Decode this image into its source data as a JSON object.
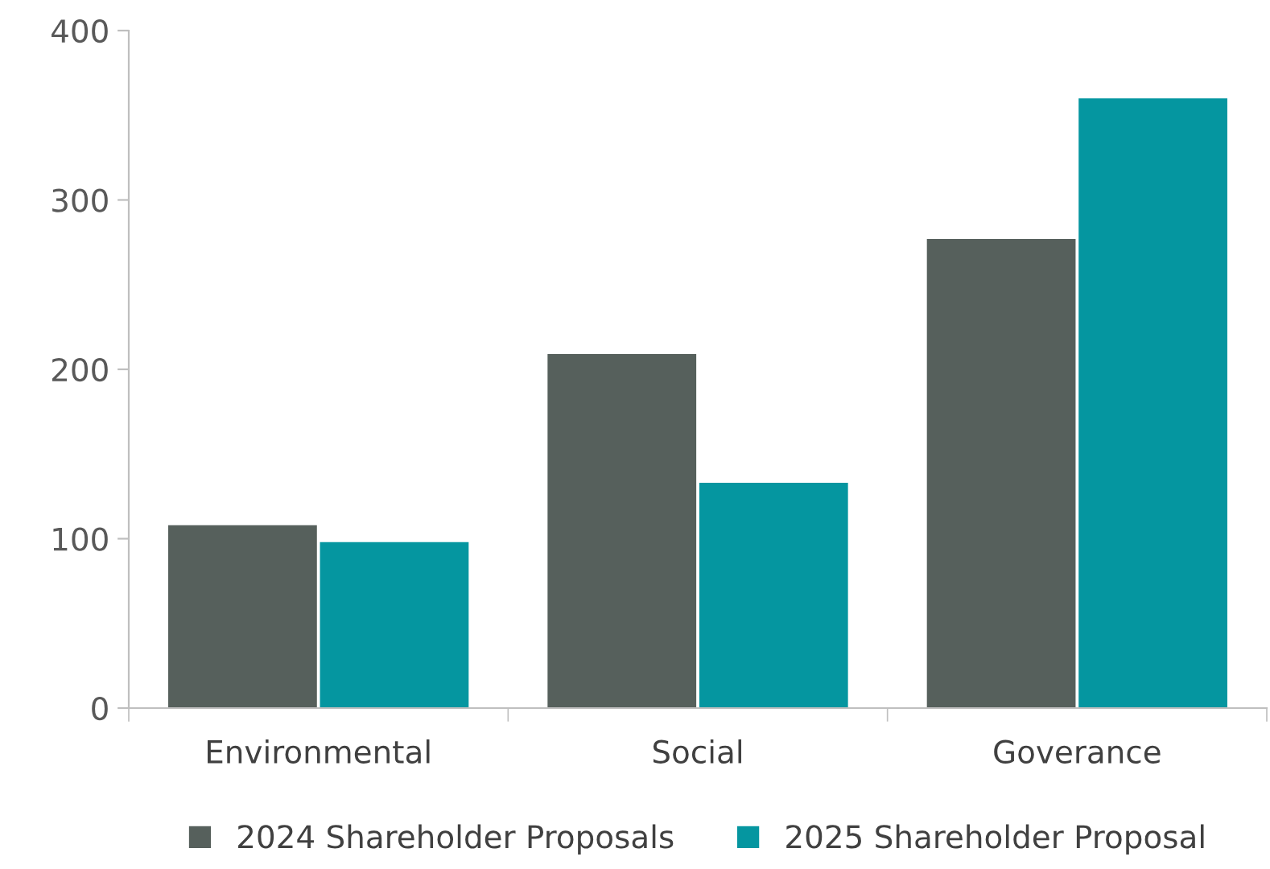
{
  "chart_data": {
    "type": "bar",
    "categories": [
      "Environmental",
      "Social",
      "Goverance"
    ],
    "series": [
      {
        "name": "2024 Shareholder Proposals",
        "color": "#56605c",
        "values": [
          108,
          209,
          277
        ]
      },
      {
        "name": "2025 Shareholder Proposal",
        "color": "#0596a0",
        "values": [
          98,
          133,
          360
        ]
      }
    ],
    "ylim": [
      0,
      400
    ],
    "yticks": [
      0,
      100,
      200,
      300,
      400
    ],
    "grid": false,
    "legend": "bottom"
  }
}
